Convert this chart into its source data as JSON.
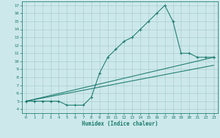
{
  "xlabel": "Humidex (Indice chaleur)",
  "bg_color": "#cce8ea",
  "grid_color": "#aacccc",
  "line_color": "#1a7a6e",
  "xlim": [
    -0.5,
    23.5
  ],
  "ylim": [
    3.5,
    17.5
  ],
  "xticks": [
    0,
    1,
    2,
    3,
    4,
    5,
    6,
    7,
    8,
    9,
    10,
    11,
    12,
    13,
    14,
    15,
    16,
    17,
    18,
    19,
    20,
    21,
    22,
    23
  ],
  "yticks": [
    4,
    5,
    6,
    7,
    8,
    9,
    10,
    11,
    12,
    13,
    14,
    15,
    16,
    17
  ],
  "line1_x": [
    0,
    1,
    2,
    3,
    4,
    5,
    6,
    7,
    8,
    9,
    10,
    11,
    12,
    13,
    14,
    15,
    16,
    17,
    18,
    19,
    20,
    21,
    22,
    23
  ],
  "line1_y": [
    5,
    5,
    5,
    5,
    5,
    4.5,
    4.5,
    4.5,
    5.5,
    8.5,
    10.5,
    11.5,
    12.5,
    13,
    14,
    15,
    16,
    17,
    15,
    11,
    11,
    10.5,
    10.5,
    10.5
  ],
  "line2_x": [
    0,
    23
  ],
  "line2_y": [
    5,
    10.5
  ],
  "line3_x": [
    0,
    23
  ],
  "line3_y": [
    5,
    9.5
  ]
}
